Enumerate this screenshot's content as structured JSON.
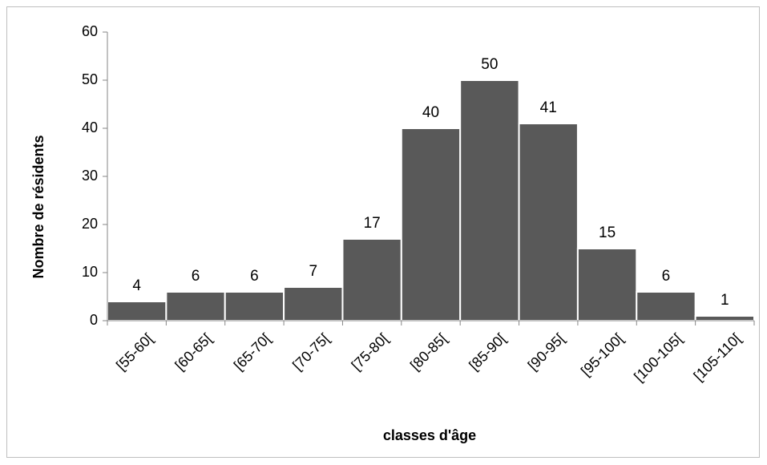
{
  "chart_data": {
    "type": "bar",
    "categories": [
      "[55-60[",
      "[60-65[",
      "[65-70[",
      "[70-75[",
      "[75-80[",
      "[80-85[",
      "[85-90[",
      "[90-95[",
      "[95-100[",
      "[100-105[",
      "[105-110["
    ],
    "values": [
      4,
      6,
      6,
      7,
      17,
      40,
      50,
      41,
      15,
      6,
      1
    ],
    "data_labels": [
      "4",
      "6",
      "6",
      "7",
      "17",
      "40",
      "50",
      "41",
      "15",
      "6",
      "1"
    ],
    "xlabel": "classes d'âge",
    "ylabel": "Nombre de résidents",
    "ylim": [
      0,
      60
    ],
    "yticks": [
      "0",
      "10",
      "20",
      "30",
      "40",
      "50",
      "60"
    ],
    "grid": false,
    "bar_color": "#595959",
    "bar_gap_color": "#ffffff"
  }
}
